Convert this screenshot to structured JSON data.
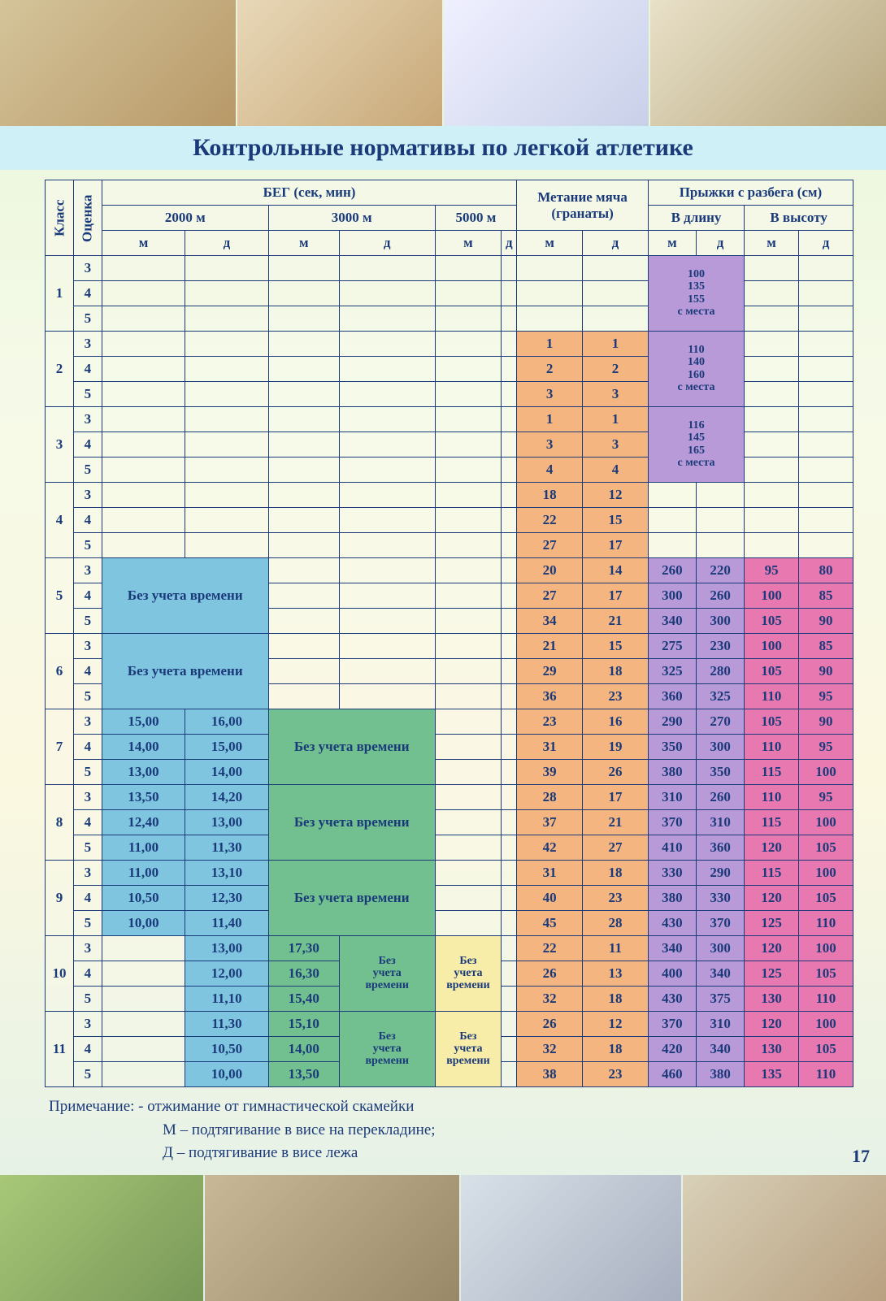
{
  "title": "Контрольные нормативы по легкой атлетике",
  "page_number": "17",
  "headers": {
    "class": "Класс",
    "grade": "Оценка",
    "run": "БЕГ (сек, мин)",
    "r2000": "2000 м",
    "r3000": "3000 м",
    "r5000": "5000 м",
    "throwing": "Метание мяча (гранаты)",
    "jumps": "Прыжки с разбега (см)",
    "long": "В длину",
    "high": "В высоту",
    "m": "м",
    "d": "д"
  },
  "colors": {
    "blue": "#7fc5e0",
    "green": "#72c090",
    "yellow": "#f8eda8",
    "orange": "#f5b580",
    "purple": "#b89ad8",
    "pink": "#e878b0",
    "header_bg": "rgba(248,248,235,0.6)",
    "body_bg": "rgba(248,248,235,0.35)",
    "text": "#1a3a7a"
  },
  "standing_jump": {
    "c1": "100\n135\n155\nс места",
    "c2": "110\n140\n160\nс места",
    "c3": "116\n145\n165\nс места"
  },
  "no_time": "Без учета времени",
  "rows": [
    {
      "class": "1",
      "grade": "3"
    },
    {
      "class": "",
      "grade": "4"
    },
    {
      "class": "",
      "grade": "5"
    },
    {
      "class": "2",
      "grade": "3",
      "thr_m": "1",
      "thr_d": "1"
    },
    {
      "class": "",
      "grade": "4",
      "thr_m": "2",
      "thr_d": "2"
    },
    {
      "class": "",
      "grade": "5",
      "thr_m": "3",
      "thr_d": "3"
    },
    {
      "class": "3",
      "grade": "3",
      "thr_m": "1",
      "thr_d": "1"
    },
    {
      "class": "",
      "grade": "4",
      "thr_m": "3",
      "thr_d": "3"
    },
    {
      "class": "",
      "grade": "5",
      "thr_m": "4",
      "thr_d": "4"
    },
    {
      "class": "4",
      "grade": "3",
      "thr_m": "18",
      "thr_d": "12"
    },
    {
      "class": "",
      "grade": "4",
      "thr_m": "22",
      "thr_d": "15"
    },
    {
      "class": "",
      "grade": "5",
      "thr_m": "27",
      "thr_d": "17"
    },
    {
      "class": "5",
      "grade": "3",
      "thr_m": "20",
      "thr_d": "14",
      "lj_m": "260",
      "lj_d": "220",
      "hj_m": "95",
      "hj_d": "80"
    },
    {
      "class": "",
      "grade": "4",
      "thr_m": "27",
      "thr_d": "17",
      "lj_m": "300",
      "lj_d": "260",
      "hj_m": "100",
      "hj_d": "85"
    },
    {
      "class": "",
      "grade": "5",
      "thr_m": "34",
      "thr_d": "21",
      "lj_m": "340",
      "lj_d": "300",
      "hj_m": "105",
      "hj_d": "90"
    },
    {
      "class": "6",
      "grade": "3",
      "thr_m": "21",
      "thr_d": "15",
      "lj_m": "275",
      "lj_d": "230",
      "hj_m": "100",
      "hj_d": "85"
    },
    {
      "class": "",
      "grade": "4",
      "thr_m": "29",
      "thr_d": "18",
      "lj_m": "325",
      "lj_d": "280",
      "hj_m": "105",
      "hj_d": "90"
    },
    {
      "class": "",
      "grade": "5",
      "thr_m": "36",
      "thr_d": "23",
      "lj_m": "360",
      "lj_d": "325",
      "hj_m": "110",
      "hj_d": "95"
    },
    {
      "class": "7",
      "grade": "3",
      "r2m": "15,00",
      "r2d": "16,00",
      "thr_m": "23",
      "thr_d": "16",
      "lj_m": "290",
      "lj_d": "270",
      "hj_m": "105",
      "hj_d": "90"
    },
    {
      "class": "",
      "grade": "4",
      "r2m": "14,00",
      "r2d": "15,00",
      "thr_m": "31",
      "thr_d": "19",
      "lj_m": "350",
      "lj_d": "300",
      "hj_m": "110",
      "hj_d": "95"
    },
    {
      "class": "",
      "grade": "5",
      "r2m": "13,00",
      "r2d": "14,00",
      "thr_m": "39",
      "thr_d": "26",
      "lj_m": "380",
      "lj_d": "350",
      "hj_m": "115",
      "hj_d": "100"
    },
    {
      "class": "8",
      "grade": "3",
      "r2m": "13,50",
      "r2d": "14,20",
      "thr_m": "28",
      "thr_d": "17",
      "lj_m": "310",
      "lj_d": "260",
      "hj_m": "110",
      "hj_d": "95"
    },
    {
      "class": "",
      "grade": "4",
      "r2m": "12,40",
      "r2d": "13,00",
      "thr_m": "37",
      "thr_d": "21",
      "lj_m": "370",
      "lj_d": "310",
      "hj_m": "115",
      "hj_d": "100"
    },
    {
      "class": "",
      "grade": "5",
      "r2m": "11,00",
      "r2d": "11,30",
      "thr_m": "42",
      "thr_d": "27",
      "lj_m": "410",
      "lj_d": "360",
      "hj_m": "120",
      "hj_d": "105"
    },
    {
      "class": "9",
      "grade": "3",
      "r2m": "11,00",
      "r2d": "13,10",
      "thr_m": "31",
      "thr_d": "18",
      "lj_m": "330",
      "lj_d": "290",
      "hj_m": "115",
      "hj_d": "100"
    },
    {
      "class": "",
      "grade": "4",
      "r2m": "10,50",
      "r2d": "12,30",
      "thr_m": "40",
      "thr_d": "23",
      "lj_m": "380",
      "lj_d": "330",
      "hj_m": "120",
      "hj_d": "105"
    },
    {
      "class": "",
      "grade": "5",
      "r2m": "10,00",
      "r2d": "11,40",
      "thr_m": "45",
      "thr_d": "28",
      "lj_m": "430",
      "lj_d": "370",
      "hj_m": "125",
      "hj_d": "110"
    },
    {
      "class": "10",
      "grade": "3",
      "r2d": "13,00",
      "r3m": "17,30",
      "thr_m": "22",
      "thr_d": "11",
      "lj_m": "340",
      "lj_d": "300",
      "hj_m": "120",
      "hj_d": "100"
    },
    {
      "class": "",
      "grade": "4",
      "r2d": "12,00",
      "r3m": "16,30",
      "thr_m": "26",
      "thr_d": "13",
      "lj_m": "400",
      "lj_d": "340",
      "hj_m": "125",
      "hj_d": "105"
    },
    {
      "class": "",
      "grade": "5",
      "r2d": "11,10",
      "r3m": "15,40",
      "thr_m": "32",
      "thr_d": "18",
      "lj_m": "430",
      "lj_d": "375",
      "hj_m": "130",
      "hj_d": "110"
    },
    {
      "class": "11",
      "grade": "3",
      "r2d": "11,30",
      "r3m": "15,10",
      "thr_m": "26",
      "thr_d": "12",
      "lj_m": "370",
      "lj_d": "310",
      "hj_m": "120",
      "hj_d": "100"
    },
    {
      "class": "",
      "grade": "4",
      "r2d": "10,50",
      "r3m": "14,00",
      "thr_m": "32",
      "thr_d": "18",
      "lj_m": "420",
      "lj_d": "340",
      "hj_m": "130",
      "hj_d": "105"
    },
    {
      "class": "",
      "grade": "5",
      "r2d": "10,00",
      "r3m": "13,50",
      "thr_m": "38",
      "thr_d": "23",
      "lj_m": "460",
      "lj_d": "380",
      "hj_m": "135",
      "hj_d": "110"
    }
  ],
  "notes": {
    "l1": "Примечание: - отжимание от гимнастической скамейки",
    "l2": "М – подтягивание в висе на перекладине;",
    "l3": "Д – подтягивание в висе лежа"
  }
}
